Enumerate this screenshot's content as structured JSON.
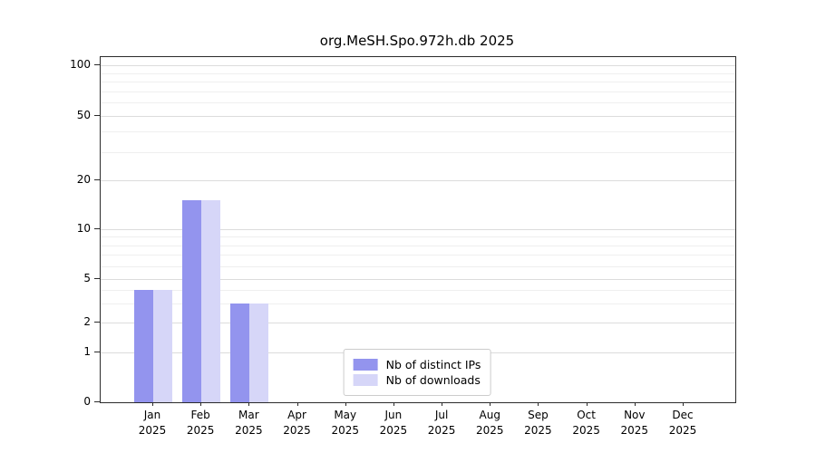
{
  "chart_data": {
    "type": "bar",
    "title": "org.MeSH.Spo.972h.db 2025",
    "categories": [
      "Jan 2025",
      "Feb 2025",
      "Mar 2025",
      "Apr 2025",
      "May 2025",
      "Jun 2025",
      "Jul 2025",
      "Aug 2025",
      "Sep 2025",
      "Oct 2025",
      "Nov 2025",
      "Dec 2025"
    ],
    "series": [
      {
        "name": "Nb of distinct IPs",
        "key": "distinct-ips",
        "color": "#9394ee",
        "values": [
          4,
          15,
          3,
          0,
          0,
          0,
          0,
          0,
          0,
          0,
          0,
          0
        ]
      },
      {
        "name": "Nb of downloads",
        "key": "downloads",
        "color": "#d6d6f8",
        "values": [
          4,
          15,
          3,
          0,
          0,
          0,
          0,
          0,
          0,
          0,
          0,
          0
        ]
      }
    ],
    "y_axis": {
      "ticks": [
        0,
        1,
        2,
        5,
        10,
        20,
        50,
        100
      ],
      "minor_gridlines": [
        3,
        4,
        6,
        7,
        8,
        9,
        30,
        40,
        60,
        70,
        80,
        90
      ],
      "scale": "symlog"
    },
    "grid": true,
    "legend_position": "bottom-center",
    "colors": {
      "major_grid": "#dcdcdc",
      "minor_grid": "#efefef",
      "spine": "#2b2b2b",
      "background": "#ffffff"
    }
  }
}
